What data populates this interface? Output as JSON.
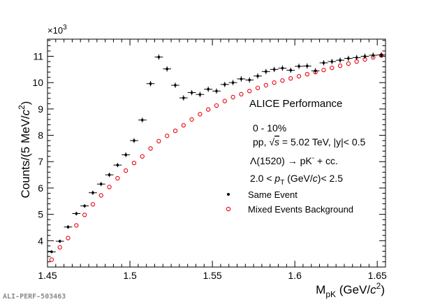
{
  "performance_tag": "ALI-PERF-503463",
  "chart_data": {
    "type": "scatter",
    "title": "",
    "xlabel_main": "M",
    "xlabel_sub": "pK",
    "xlabel_unit_pre": " (GeV/",
    "xlabel_c": "c",
    "xlabel_exp": "2",
    "xlabel_unit_post": ")",
    "ylabel_pre": "Counts/(5 MeV/",
    "ylabel_c": "c",
    "ylabel_exp": "2",
    "ylabel_post": ")",
    "y_multiplier_base": "×10",
    "y_multiplier_exp": "3",
    "xlim": [
      1.45,
      1.655
    ],
    "ylim": [
      3.0,
      11.65
    ],
    "x_ticks": [
      1.45,
      1.5,
      1.55,
      1.6,
      1.65
    ],
    "x_tick_labels": [
      "1.45",
      "1.5",
      "1.55",
      "1.6",
      "1.65"
    ],
    "y_ticks": [
      4,
      5,
      6,
      7,
      8,
      9,
      10,
      11
    ],
    "y_tick_labels": [
      "4",
      "5",
      "6",
      "7",
      "8",
      "9",
      "10",
      "11"
    ],
    "grid": false,
    "legend_position": "center-right",
    "annotations": {
      "experiment": "ALICE Performance",
      "centrality": "0 - 10%",
      "collision_pre": "pp, ",
      "collision_sqrt": "√",
      "collision_s": "s",
      "collision_post": " = 5.02 TeV, |y|< 0.5",
      "decay_pre": "Λ(1520) → pK",
      "decay_sup": "-",
      "decay_post": " + cc.",
      "pt_pre": "2.0 < ",
      "pt_p": "p",
      "pt_sub": "T",
      "pt_mid": " (GeV/",
      "pt_c": "c",
      "pt_post": ")< 2.5"
    },
    "series": [
      {
        "name": "Same Event",
        "marker": "filled-dot",
        "color": "#000000",
        "x": [
          1.4525,
          1.4575,
          1.4625,
          1.4675,
          1.4725,
          1.4775,
          1.4825,
          1.4875,
          1.4925,
          1.4975,
          1.5025,
          1.5075,
          1.5125,
          1.5175,
          1.5225,
          1.5275,
          1.5325,
          1.5375,
          1.5425,
          1.5475,
          1.5525,
          1.5575,
          1.5625,
          1.5675,
          1.5725,
          1.5775,
          1.5825,
          1.5875,
          1.5925,
          1.5975,
          1.6025,
          1.6075,
          1.6125,
          1.6175,
          1.6225,
          1.6275,
          1.6325,
          1.6375,
          1.6425,
          1.6475,
          1.6525
        ],
        "y": [
          3.58,
          3.98,
          4.52,
          5.03,
          5.32,
          5.82,
          6.15,
          6.5,
          6.87,
          7.26,
          7.8,
          8.58,
          9.96,
          10.97,
          10.52,
          9.9,
          9.42,
          9.62,
          9.55,
          9.75,
          9.68,
          9.93,
          10.0,
          10.14,
          10.1,
          10.25,
          10.42,
          10.5,
          10.55,
          10.47,
          10.62,
          10.63,
          10.45,
          10.75,
          10.8,
          10.85,
          10.92,
          10.95,
          11.0,
          11.04,
          11.05
        ],
        "yerr": [
          0.06,
          0.06,
          0.07,
          0.07,
          0.07,
          0.08,
          0.08,
          0.08,
          0.08,
          0.09,
          0.09,
          0.09,
          0.1,
          0.1,
          0.1,
          0.1,
          0.1,
          0.1,
          0.1,
          0.1,
          0.1,
          0.1,
          0.1,
          0.1,
          0.1,
          0.1,
          0.1,
          0.1,
          0.1,
          0.1,
          0.1,
          0.1,
          0.1,
          0.1,
          0.1,
          0.1,
          0.1,
          0.1,
          0.1,
          0.1,
          0.1
        ]
      },
      {
        "name": "Mixed Events Background",
        "marker": "open-circle",
        "color": "#e8000b",
        "x": [
          1.4525,
          1.4575,
          1.4625,
          1.4675,
          1.4725,
          1.4775,
          1.4825,
          1.4875,
          1.4925,
          1.4975,
          1.5025,
          1.5075,
          1.5125,
          1.5175,
          1.5225,
          1.5275,
          1.5325,
          1.5375,
          1.5425,
          1.5475,
          1.5525,
          1.5575,
          1.5625,
          1.5675,
          1.5725,
          1.5775,
          1.5825,
          1.5875,
          1.5925,
          1.5975,
          1.6025,
          1.6075,
          1.6125,
          1.6175,
          1.6225,
          1.6275,
          1.6325,
          1.6375,
          1.6425,
          1.6475,
          1.6525
        ],
        "y": [
          3.28,
          3.75,
          4.1,
          4.58,
          4.98,
          5.38,
          5.72,
          6.04,
          6.37,
          6.66,
          6.95,
          7.2,
          7.5,
          7.78,
          7.98,
          8.17,
          8.38,
          8.6,
          8.8,
          8.98,
          9.13,
          9.3,
          9.45,
          9.56,
          9.68,
          9.8,
          9.9,
          10.0,
          10.08,
          10.16,
          10.24,
          10.32,
          10.4,
          10.48,
          10.56,
          10.64,
          10.72,
          10.8,
          10.88,
          10.96,
          11.03
        ]
      }
    ]
  }
}
